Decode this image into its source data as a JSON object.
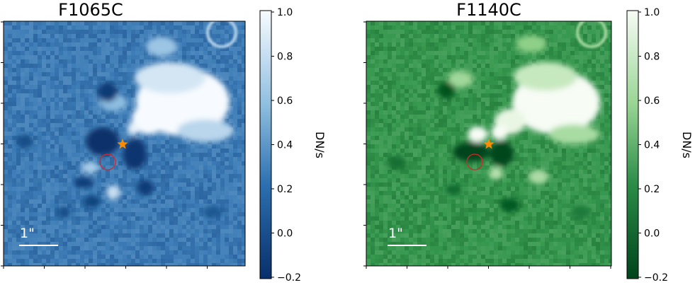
{
  "chart_data": [
    {
      "type": "heatmap",
      "title": "F1065C",
      "colormap": "Blues_r",
      "colors": {
        "low": "#08306b",
        "mid": "#4a89c0",
        "high": "#f7fbff"
      },
      "colorbar": {
        "label": "DN/s",
        "range": [
          -0.2,
          1.0
        ],
        "ticks": [
          "1.0",
          "0.8",
          "0.6",
          "0.4",
          "0.2",
          "0.0",
          "−0.2"
        ]
      },
      "scale_bar_label": "1\"",
      "markers": [
        "star",
        "circle"
      ],
      "marker_colors": {
        "star": "#ff8c00",
        "circle": "#d62728"
      }
    },
    {
      "type": "heatmap",
      "title": "F1140C",
      "colormap": "Greens_r",
      "colors": {
        "low": "#00441b",
        "mid": "#3a9a55",
        "high": "#f7fcf5"
      },
      "colorbar": {
        "label": "DN/s",
        "range": [
          -0.2,
          1.0
        ],
        "ticks": [
          "1.0",
          "0.8",
          "0.6",
          "0.4",
          "0.2",
          "0.0",
          "−0.2"
        ]
      },
      "scale_bar_label": "1\"",
      "markers": [
        "star",
        "circle"
      ],
      "marker_colors": {
        "star": "#ff8c00",
        "circle": "#d62728"
      }
    }
  ]
}
